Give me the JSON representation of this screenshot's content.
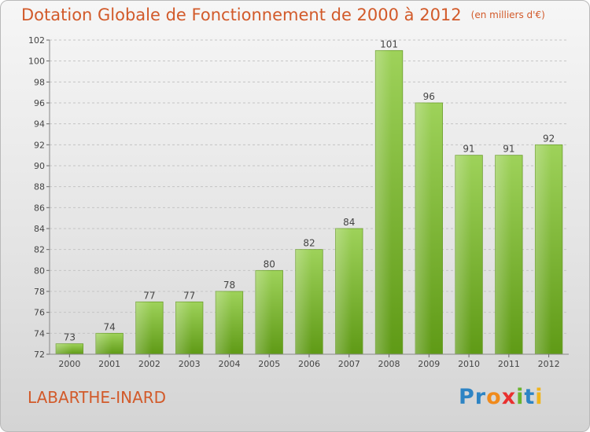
{
  "title": "Dotation Globale de Fonctionnement de 2000 à 2012",
  "unit": "(en milliers d'€)",
  "place": "LABARTHE-INARD",
  "logo": {
    "text": "Proxiti",
    "letters": [
      {
        "char": "P",
        "color": "#2d84c4"
      },
      {
        "char": "r",
        "color": "#2d84c4"
      },
      {
        "char": "o",
        "color": "#f08a1c"
      },
      {
        "char": "x",
        "color": "#e9302f"
      },
      {
        "char": "i",
        "color": "#6ab42d"
      },
      {
        "char": "t",
        "color": "#2d84c4"
      },
      {
        "char": "i",
        "color": "#f0b41c"
      }
    ]
  },
  "colors": {
    "accent": "#d25a2a",
    "bar_light": "#9ed25a",
    "bar_dark": "#5f9a16"
  },
  "chart_data": {
    "type": "bar",
    "categories": [
      "2000",
      "2001",
      "2002",
      "2003",
      "2004",
      "2005",
      "2006",
      "2007",
      "2008",
      "2009",
      "2010",
      "2011",
      "2012"
    ],
    "values": [
      73,
      74,
      77,
      77,
      78,
      80,
      82,
      84,
      101,
      96,
      91,
      91,
      92
    ],
    "ylim": [
      72,
      102
    ],
    "yticks": [
      72,
      74,
      76,
      78,
      80,
      82,
      84,
      86,
      88,
      90,
      92,
      94,
      96,
      98,
      100,
      102
    ],
    "grid": true,
    "data_labels": true
  }
}
